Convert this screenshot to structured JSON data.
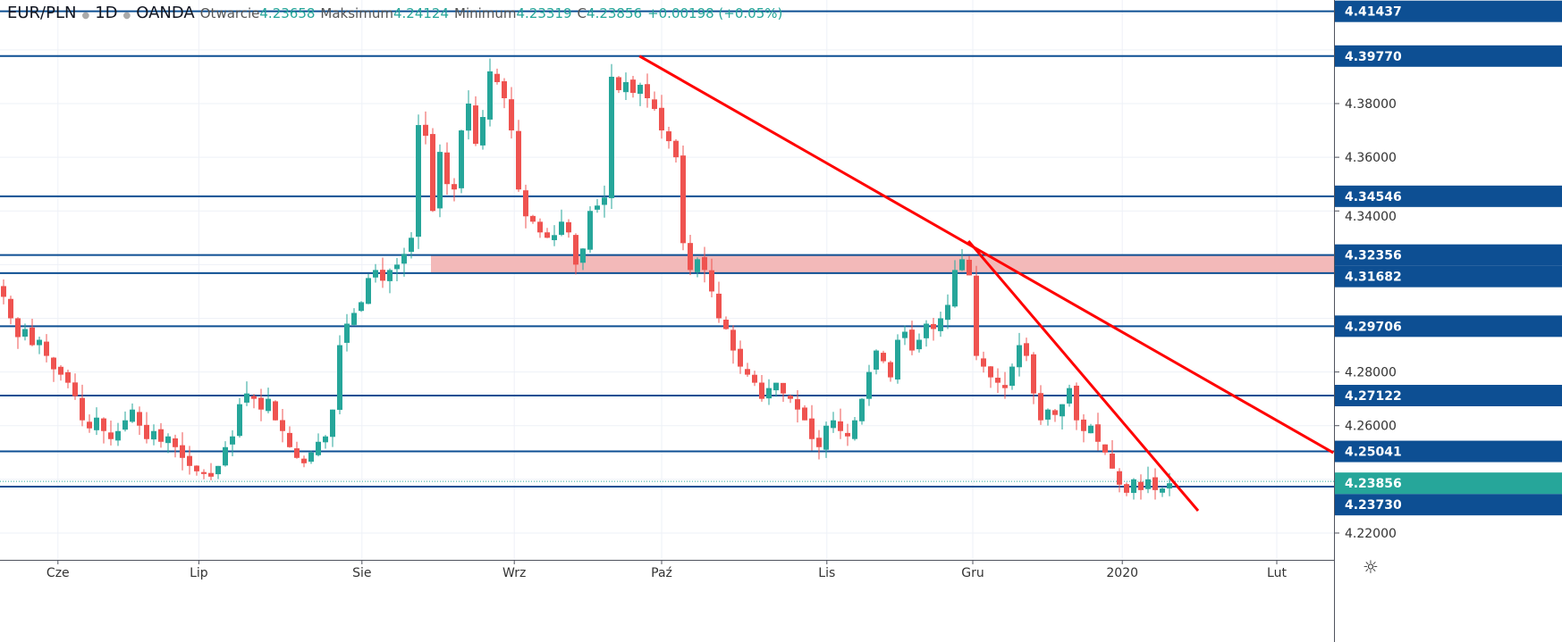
{
  "legend": {
    "symbol": "EUR/PLN",
    "interval": "1D",
    "exchange": "OANDA",
    "open_label": "Otwarcie",
    "open": "4.23658",
    "high_label": "Maksimum",
    "high": "4.24124",
    "low_label": "Minimum",
    "low": "4.23319",
    "close_label": "C",
    "close": "4.23856",
    "change": "+0.00198 (+0.05%)"
  },
  "colors": {
    "up": "#26a69a",
    "down": "#ef5350",
    "level": "#0d4f93",
    "trend": "#ff0000",
    "zone": "#f3b9b9",
    "grid": "#eef1f7"
  },
  "chart_data": {
    "type": "candlestick",
    "title": "EUR/PLN 1D OANDA",
    "ylim": [
      4.21001,
      4.41859
    ],
    "xlim": [
      -0.5,
      186
    ],
    "closes": [
      4.308,
      4.3,
      4.293,
      4.296,
      4.29,
      4.292,
      4.286,
      4.281,
      4.279,
      4.276,
      4.271,
      4.262,
      4.259,
      4.263,
      4.258,
      4.255,
      4.258,
      4.262,
      4.266,
      4.26,
      4.255,
      4.258,
      4.254,
      4.256,
      4.252,
      4.248,
      4.245,
      4.243,
      4.242,
      4.241,
      4.245,
      4.252,
      4.256,
      4.268,
      4.272,
      4.27,
      4.266,
      4.27,
      4.262,
      4.258,
      4.252,
      4.248,
      4.246,
      4.25,
      4.254,
      4.256,
      4.266,
      4.29,
      4.298,
      4.302,
      4.306,
      4.315,
      4.318,
      4.314,
      4.318,
      4.32,
      4.324,
      4.33,
      4.372,
      4.368,
      4.34,
      4.362,
      4.35,
      4.348,
      4.37,
      4.38,
      4.365,
      4.375,
      4.392,
      4.388,
      4.382,
      4.37,
      4.348,
      4.338,
      4.336,
      4.332,
      4.33,
      4.331,
      4.336,
      4.332,
      4.32,
      4.326,
      4.34,
      4.342,
      4.345,
      4.39,
      4.385,
      4.388,
      4.384,
      4.387,
      4.382,
      4.378,
      4.37,
      4.366,
      4.36,
      4.328,
      4.318,
      4.322,
      4.318,
      4.31,
      4.3,
      4.296,
      4.288,
      4.282,
      4.279,
      4.276,
      4.27,
      4.274,
      4.276,
      4.272,
      4.27,
      4.266,
      4.262,
      4.255,
      4.252,
      4.26,
      4.262,
      4.258,
      4.256,
      4.262,
      4.27,
      4.28,
      4.288,
      4.284,
      4.278,
      4.292,
      4.295,
      4.288,
      4.292,
      4.298,
      4.296,
      4.3,
      4.305,
      4.318,
      4.322,
      4.316,
      4.286,
      4.282,
      4.278,
      4.276,
      4.274,
      4.282,
      4.29,
      4.286,
      4.272,
      4.262,
      4.266,
      4.264,
      4.268,
      4.274,
      4.262,
      4.258,
      4.26,
      4.254,
      4.25,
      4.244,
      4.238,
      4.235,
      4.24,
      4.236,
      4.24,
      4.236,
      4.2366,
      4.23856
    ],
    "x_ticks": [
      {
        "label": "Cze",
        "index": 7.6
      },
      {
        "label": "Lip",
        "index": 27.3
      },
      {
        "label": "Sie",
        "index": 50.1
      },
      {
        "label": "Wrz",
        "index": 71.4
      },
      {
        "label": "Paź",
        "index": 92
      },
      {
        "label": "Lis",
        "index": 115.1
      },
      {
        "label": "Gru",
        "index": 135.5
      },
      {
        "label": "2020",
        "index": 156.4
      },
      {
        "label": "Lut",
        "index": 178
      }
    ],
    "y_ticks": [
      "4.38000",
      "4.36000",
      "4.34000",
      "4.28000",
      "4.26000",
      "4.22000"
    ],
    "levels": [
      "4.41437",
      "4.39770",
      "4.34546",
      "4.32356",
      "4.31682",
      "4.29706",
      "4.27122",
      "4.25041",
      "4.23730"
    ],
    "current_price": "4.23856",
    "zone": {
      "from": 4.31682,
      "to": 4.32356,
      "start_index": 59.75
    },
    "trendlines": [
      {
        "name": "long-trendline",
        "from": [
          88.9,
          4.3977
        ],
        "to": [
          185.9,
          4.2499
        ]
      },
      {
        "name": "short-trendline",
        "from": [
          134.9,
          4.3288
        ],
        "to": [
          167,
          4.2283
        ]
      }
    ]
  }
}
